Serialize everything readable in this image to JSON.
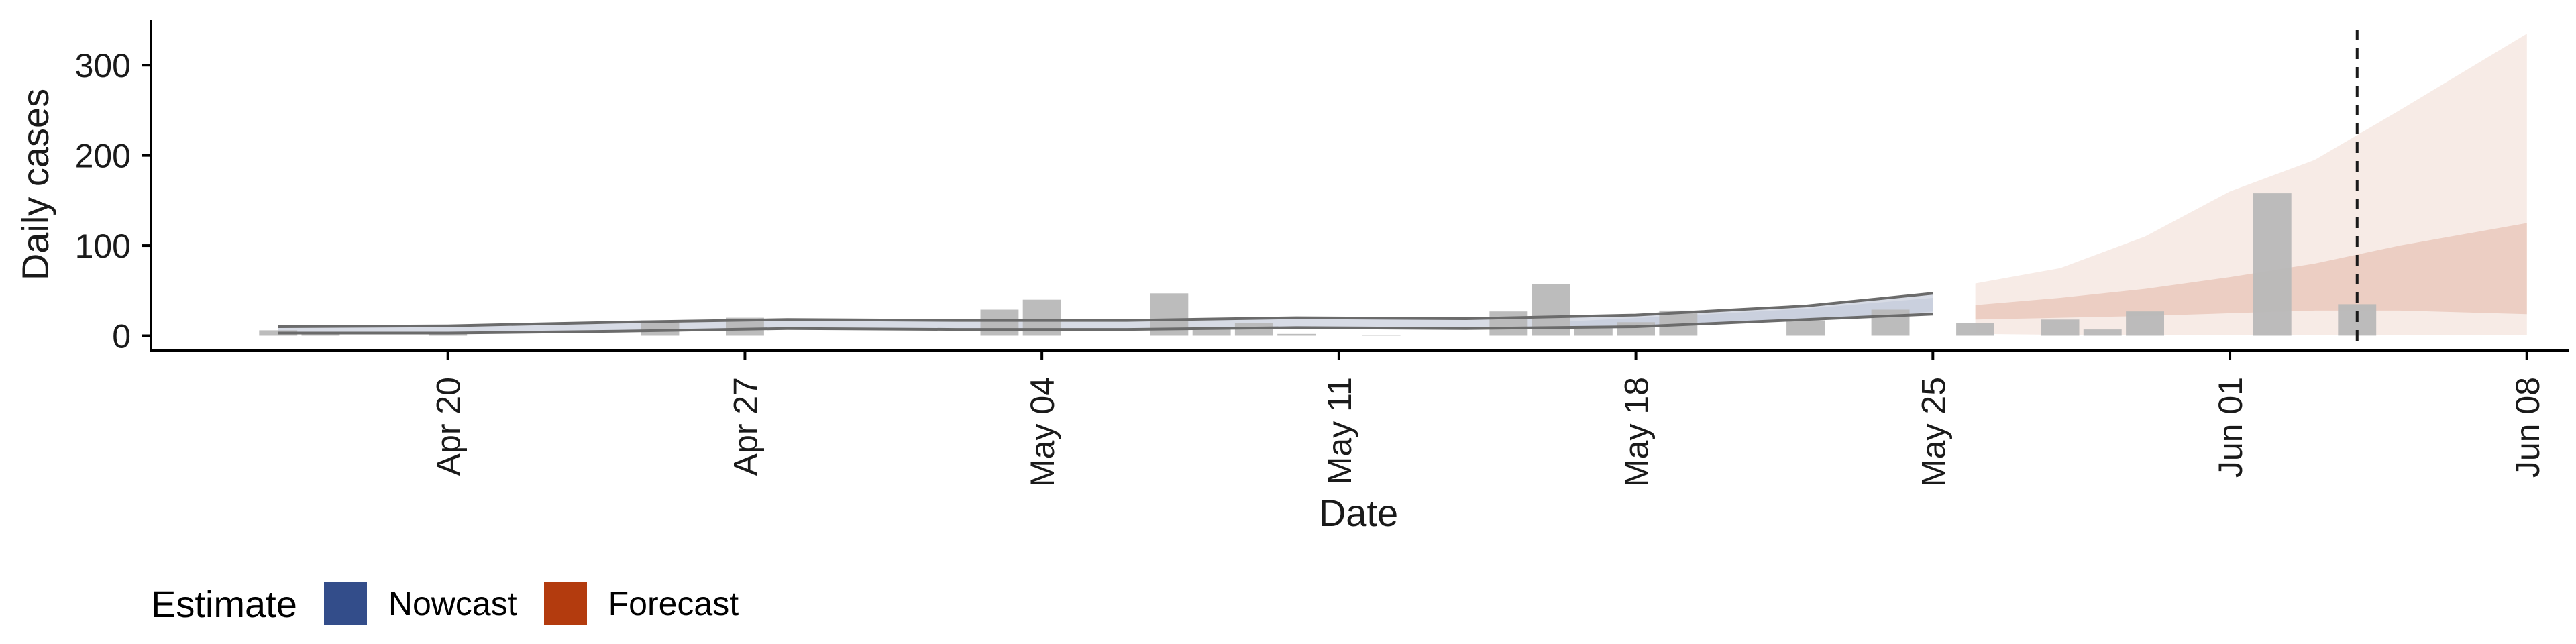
{
  "colors": {
    "nowcast": "#334d8a",
    "forecast": "#b33b0e",
    "observed_bars": "#b8b8b8",
    "estimate_line": "#6b6b6b",
    "axis": "#000000"
  },
  "legend": {
    "title": "Estimate",
    "items": [
      {
        "label": "Nowcast",
        "color": "#334d8a"
      },
      {
        "label": "Forecast",
        "color": "#b33b0e"
      }
    ]
  },
  "chart_data": {
    "type": "bar",
    "title": "",
    "xlabel": "Date",
    "ylabel": "Daily cases",
    "ylim": [
      -16,
      350
    ],
    "yticks": [
      0,
      100,
      200,
      300
    ],
    "xlim": [
      "2020-04-13",
      "2020-06-09"
    ],
    "xticks": [
      {
        "date": "2020-04-20",
        "label": "Apr 20"
      },
      {
        "date": "2020-04-27",
        "label": "Apr 27"
      },
      {
        "date": "2020-05-04",
        "label": "May 04"
      },
      {
        "date": "2020-05-11",
        "label": "May 11"
      },
      {
        "date": "2020-05-18",
        "label": "May 18"
      },
      {
        "date": "2020-05-25",
        "label": "May 25"
      },
      {
        "date": "2020-06-01",
        "label": "Jun 01"
      },
      {
        "date": "2020-06-08",
        "label": "Jun 08"
      }
    ],
    "x_tick_rotation": "vertical",
    "grid": false,
    "legend_position": "bottom-left",
    "observed_cases": [
      {
        "date": "2020-04-16",
        "value": 6
      },
      {
        "date": "2020-04-17",
        "value": 4
      },
      {
        "date": "2020-04-20",
        "value": 2
      },
      {
        "date": "2020-04-25",
        "value": 17
      },
      {
        "date": "2020-04-27",
        "value": 20
      },
      {
        "date": "2020-05-03",
        "value": 29
      },
      {
        "date": "2020-05-04",
        "value": 40
      },
      {
        "date": "2020-05-07",
        "value": 47
      },
      {
        "date": "2020-05-08",
        "value": 9
      },
      {
        "date": "2020-05-09",
        "value": 14
      },
      {
        "date": "2020-05-10",
        "value": 2
      },
      {
        "date": "2020-05-12",
        "value": 1
      },
      {
        "date": "2020-05-15",
        "value": 27
      },
      {
        "date": "2020-05-16",
        "value": 57
      },
      {
        "date": "2020-05-17",
        "value": 9
      },
      {
        "date": "2020-05-18",
        "value": 15
      },
      {
        "date": "2020-05-19",
        "value": 28
      },
      {
        "date": "2020-05-22",
        "value": 17
      },
      {
        "date": "2020-05-24",
        "value": 29
      },
      {
        "date": "2020-05-26",
        "value": 14
      },
      {
        "date": "2020-05-28",
        "value": 18
      },
      {
        "date": "2020-05-29",
        "value": 7
      },
      {
        "date": "2020-05-30",
        "value": 27
      },
      {
        "date": "2020-06-02",
        "value": 158
      },
      {
        "date": "2020-06-04",
        "value": 35
      }
    ],
    "estimate_dates": [
      "2020-04-16",
      "2020-04-20",
      "2020-04-24",
      "2020-04-28",
      "2020-05-02",
      "2020-05-06",
      "2020-05-10",
      "2020-05-14",
      "2020-05-18",
      "2020-05-22",
      "2020-05-25"
    ],
    "estimate_upper": [
      10,
      11,
      15,
      18,
      17,
      17,
      20,
      19,
      23,
      33,
      47
    ],
    "estimate_lower": [
      3,
      3,
      5,
      8,
      7,
      7,
      9,
      8,
      10,
      18,
      24
    ],
    "nowcast_dates": [
      "2020-05-16",
      "2020-05-19",
      "2020-05-22",
      "2020-05-25"
    ],
    "nowcast_upper": [
      15,
      22,
      30,
      42
    ],
    "nowcast_lower": [
      10,
      13,
      17,
      27
    ],
    "forecast_dates": [
      "2020-05-26",
      "2020-05-28",
      "2020-05-30",
      "2020-06-01",
      "2020-06-03",
      "2020-06-05",
      "2020-06-08"
    ],
    "forecast_outer_upper": [
      58,
      75,
      110,
      160,
      195,
      250,
      335
    ],
    "forecast_outer_lower": [
      2,
      1,
      1,
      1,
      1,
      1,
      1
    ],
    "forecast_inner_upper": [
      34,
      42,
      52,
      65,
      80,
      100,
      125
    ],
    "forecast_inner_lower": [
      18,
      20,
      22,
      25,
      28,
      28,
      24
    ],
    "vertical_marker_date": "2020-06-04"
  }
}
